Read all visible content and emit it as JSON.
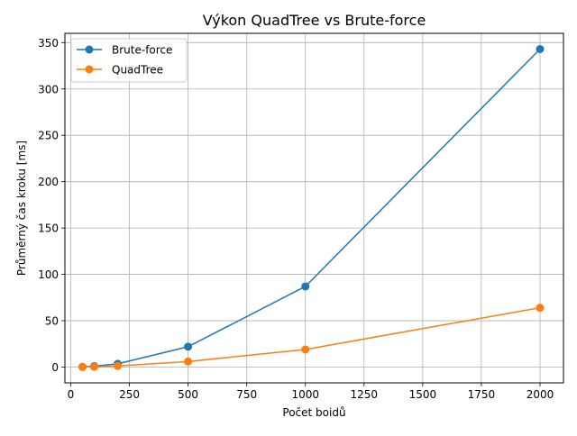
{
  "chart_data": {
    "type": "line",
    "title": "Výkon QuadTree vs Brute-force",
    "xlabel": "Počet boidů",
    "ylabel": "Průměrný čas kroku [ms]",
    "xlim": [
      -25,
      2100
    ],
    "ylim": [
      -17,
      360
    ],
    "xticks": [
      0,
      250,
      500,
      750,
      1000,
      1250,
      1500,
      1750,
      2000
    ],
    "yticks": [
      0,
      50,
      100,
      150,
      200,
      250,
      300,
      350
    ],
    "grid": true,
    "legend_position": "top-left",
    "series": [
      {
        "name": "Brute-force",
        "color": "#1f77b4",
        "x": [
          50,
          100,
          200,
          500,
          1000,
          2000
        ],
        "y": [
          0.3,
          1.0,
          3.5,
          22.0,
          87.0,
          343.0
        ]
      },
      {
        "name": "QuadTree",
        "color": "#ff7f0e",
        "x": [
          50,
          100,
          200,
          500,
          1000,
          2000
        ],
        "y": [
          0.1,
          0.3,
          1.2,
          6.0,
          19.0,
          64.0
        ]
      }
    ]
  }
}
